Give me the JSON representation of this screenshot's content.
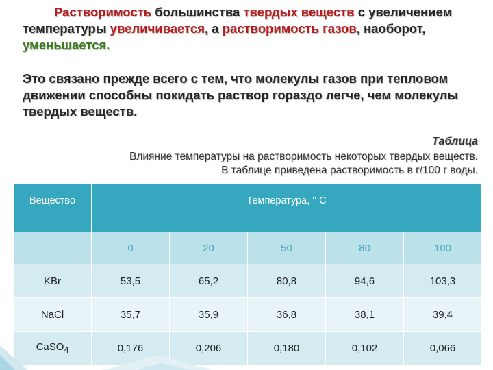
{
  "intro": {
    "p1": [
      {
        "t": "Растворимость",
        "c": "red"
      },
      {
        "t": " большинства ",
        "c": ""
      },
      {
        "t": "твердых веществ",
        "c": "red"
      },
      {
        "t": " с увеличением температуры ",
        "c": ""
      },
      {
        "t": "увеличивается",
        "c": "red"
      },
      {
        "t": ", а ",
        "c": ""
      },
      {
        "t": "растворимость газов",
        "c": "red"
      },
      {
        "t": ", наоборот, ",
        "c": ""
      },
      {
        "t": "уменьшается.",
        "c": "green"
      }
    ],
    "p2": "Это связано прежде всего с тем, что молекулы газов при тепловом движении способны покидать раствор гораздо легче, чем молекулы твердых веществ."
  },
  "caption": {
    "title": "Таблица",
    "line1": "Влияние температуры на растворимость некоторых твердых веществ.",
    "line2": "В таблице приведена растворимость в г/100 г воды."
  },
  "table": {
    "header_substance": "Вещество",
    "header_temperature": "Температура, ° С",
    "temperatures": [
      "0",
      "20",
      "50",
      "80",
      "100"
    ],
    "rows": [
      {
        "name": "KBr",
        "values": [
          "53,5",
          "65,2",
          "80,8",
          "94,6",
          "103,3"
        ]
      },
      {
        "name": "NaCl",
        "values": [
          "35,7",
          "35,9",
          "36,8",
          "38,1",
          "39,4"
        ]
      },
      {
        "name": "CaSO",
        "sub": "4",
        "values": [
          "0,176",
          "0,206",
          "0,180",
          "0,102",
          "0,066"
        ]
      }
    ]
  }
}
